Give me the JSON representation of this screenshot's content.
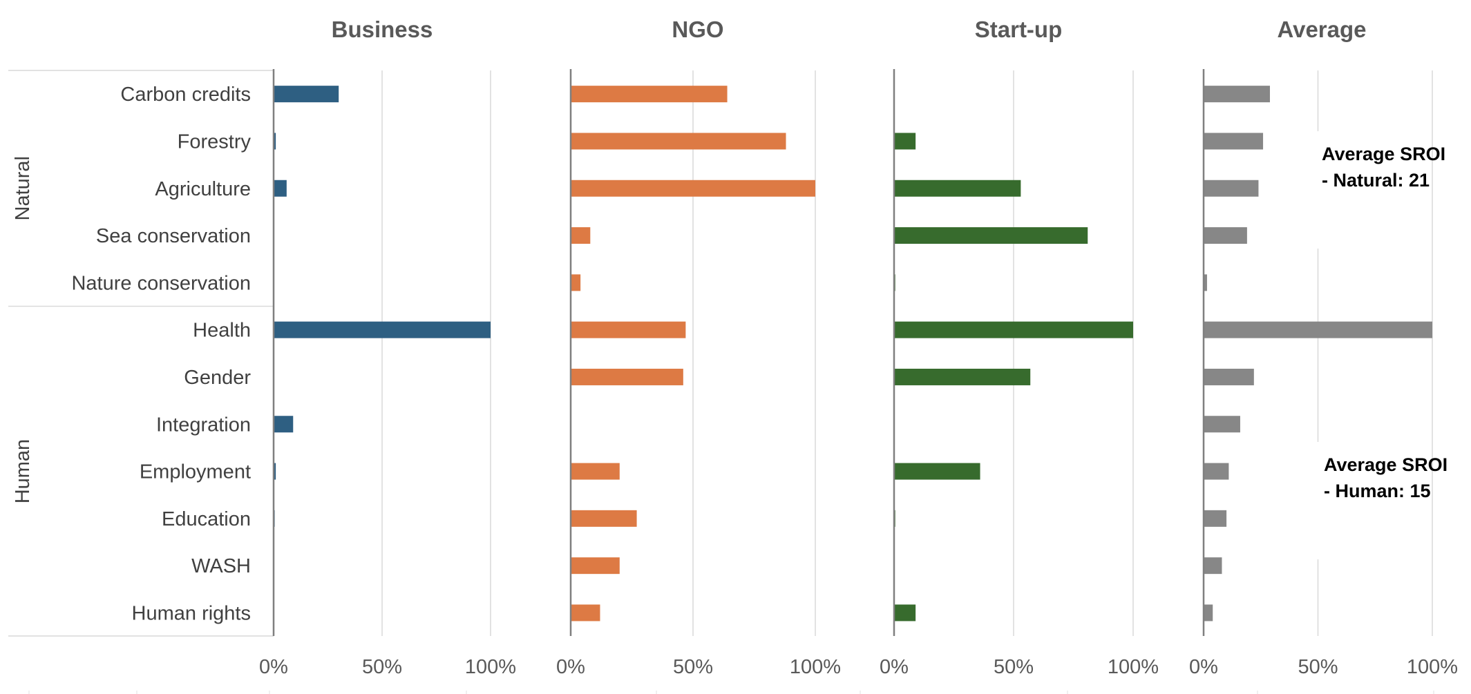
{
  "chart_data": {
    "type": "bar",
    "orientation": "horizontal",
    "categories": [
      "Carbon credits",
      "Forestry",
      "Agriculture",
      "Sea conservation",
      "Nature conservation",
      "Health",
      "Gender",
      "Integration",
      "Employment",
      "Education",
      "WASH",
      "Human rights"
    ],
    "groups": [
      {
        "name": "Natural",
        "categories": [
          "Carbon credits",
          "Forestry",
          "Agriculture",
          "Sea conservation",
          "Nature conservation"
        ]
      },
      {
        "name": "Human",
        "categories": [
          "Health",
          "Gender",
          "Integration",
          "Employment",
          "Education",
          "WASH",
          "Human rights"
        ]
      }
    ],
    "panels": [
      {
        "title": "Business",
        "color": "#2e5f82",
        "values": [
          30,
          1,
          6,
          0,
          0,
          100,
          0,
          9,
          1,
          0.5,
          0,
          0
        ]
      },
      {
        "title": "NGO",
        "color": "#dd7a44",
        "values": [
          64,
          88,
          100,
          8,
          4,
          47,
          46,
          0,
          20,
          27,
          20,
          12
        ]
      },
      {
        "title": "Start-up",
        "color": "#376b2d",
        "values": [
          0,
          9,
          53,
          81,
          0.5,
          100,
          57,
          0,
          36,
          0.5,
          0,
          9
        ]
      },
      {
        "title": "Average",
        "color": "#878787",
        "values": [
          29,
          26,
          24,
          19,
          1.5,
          100,
          22,
          16,
          11,
          10,
          8,
          4
        ]
      }
    ],
    "x_ticks": [
      "0%",
      "50%",
      "100%"
    ],
    "xlim": [
      0,
      100
    ],
    "annotations": [
      {
        "panel": "Average",
        "group": "Natural",
        "lines": [
          "Average SROI",
          "- Natural: 21"
        ]
      },
      {
        "panel": "Average",
        "group": "Human",
        "lines": [
          "Average SROI",
          "- Human: 15"
        ]
      }
    ]
  }
}
